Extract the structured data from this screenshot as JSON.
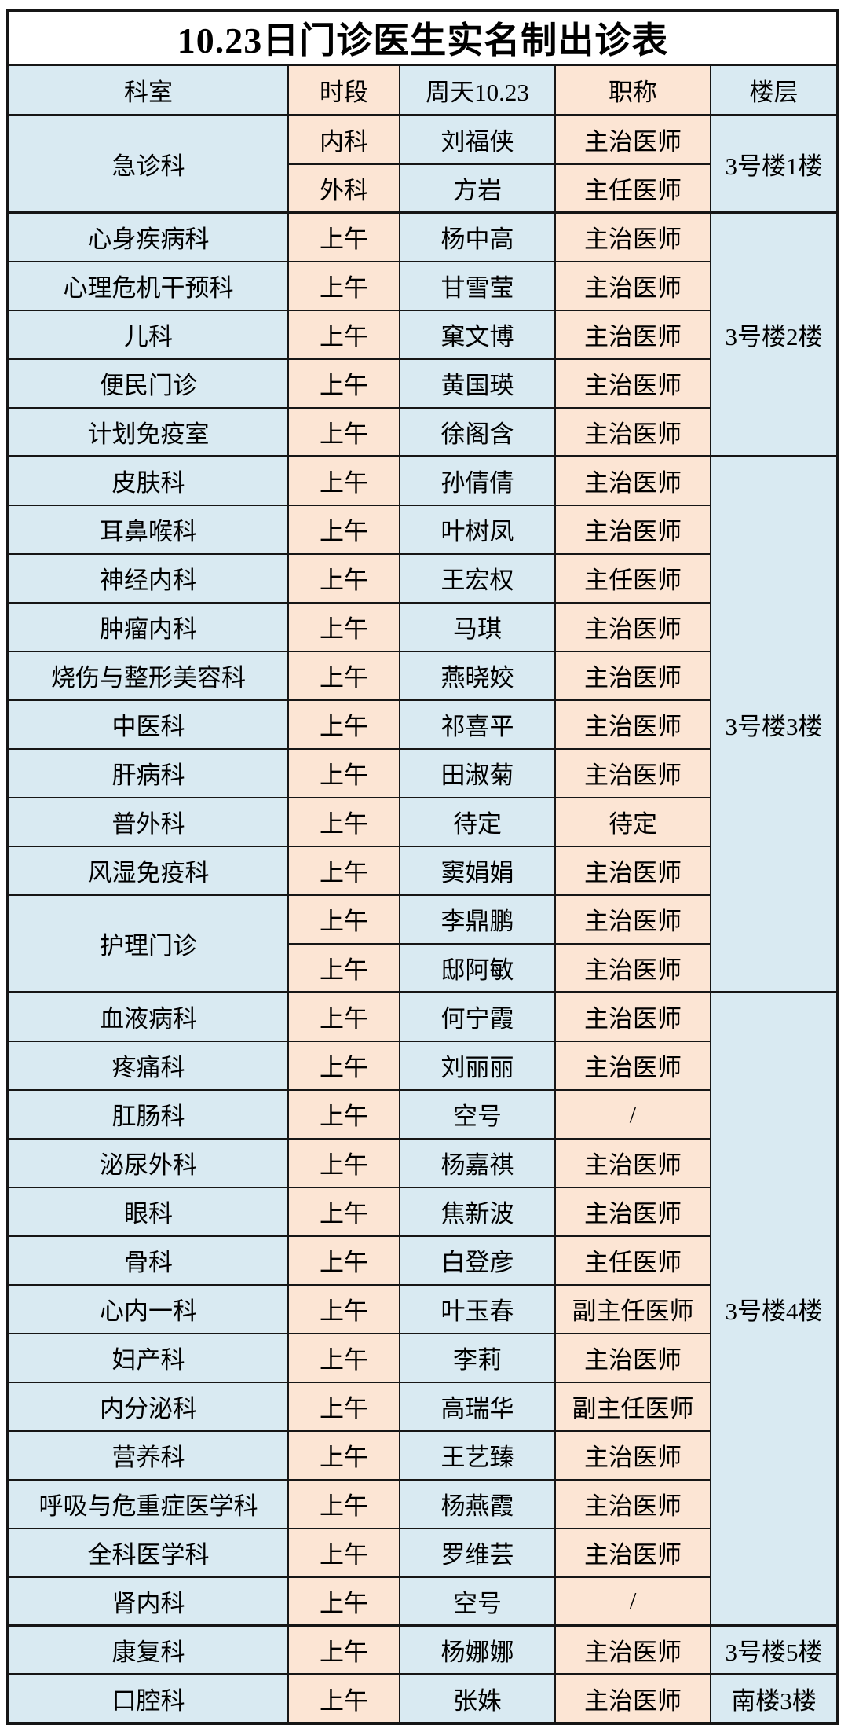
{
  "page_title": "10.23日门诊医生实名制出诊表",
  "colors": {
    "column_blue": "#d9eaf2",
    "column_peach": "#fce5d4",
    "border": "#161616",
    "background": "#ffffff",
    "text": "#000000"
  },
  "table": {
    "columns": [
      "科室",
      "时段",
      "周天10.23",
      "职称",
      "楼层"
    ],
    "rows": [
      {
        "department": "急诊科",
        "department_span": 2,
        "session": "内科",
        "doctor": "刘福侠",
        "doctor_title": "主治医师",
        "floor": "3号楼1楼",
        "floor_span": 2
      },
      {
        "department": null,
        "session": "外科",
        "doctor": "方岩",
        "doctor_title": "主任医师",
        "floor": null
      },
      {
        "department": "心身疾病科",
        "session": "上午",
        "doctor": "杨中高",
        "doctor_title": "主治医师",
        "floor": "3号楼2楼",
        "floor_span": 5
      },
      {
        "department": "心理危机干预科",
        "session": "上午",
        "doctor": "甘雪莹",
        "doctor_title": "主治医师",
        "floor": null
      },
      {
        "department": "儿科",
        "session": "上午",
        "doctor": "窠文博",
        "doctor_title": "主治医师",
        "floor": null
      },
      {
        "department": "便民门诊",
        "session": "上午",
        "doctor": "黄国瑛",
        "doctor_title": "主治医师",
        "floor": null
      },
      {
        "department": "计划免疫室",
        "session": "上午",
        "doctor": "徐阁含",
        "doctor_title": "主治医师",
        "floor": null
      },
      {
        "department": "皮肤科",
        "session": "上午",
        "doctor": "孙倩倩",
        "doctor_title": "主治医师",
        "floor": "3号楼3楼",
        "floor_span": 11
      },
      {
        "department": "耳鼻喉科",
        "session": "上午",
        "doctor": "叶树凤",
        "doctor_title": "主治医师",
        "floor": null
      },
      {
        "department": "神经内科",
        "session": "上午",
        "doctor": "王宏权",
        "doctor_title": "主任医师",
        "floor": null
      },
      {
        "department": "肿瘤内科",
        "session": "上午",
        "doctor": "马琪",
        "doctor_title": "主治医师",
        "floor": null
      },
      {
        "department": "烧伤与整形美容科",
        "session": "上午",
        "doctor": "燕晓姣",
        "doctor_title": "主治医师",
        "floor": null
      },
      {
        "department": "中医科",
        "session": "上午",
        "doctor": "祁喜平",
        "doctor_title": "主治医师",
        "floor": null
      },
      {
        "department": "肝病科",
        "session": "上午",
        "doctor": "田淑菊",
        "doctor_title": "主治医师",
        "floor": null
      },
      {
        "department": "普外科",
        "session": "上午",
        "doctor": "待定",
        "doctor_title": "待定",
        "floor": null
      },
      {
        "department": "风湿免疫科",
        "session": "上午",
        "doctor": "窦娟娟",
        "doctor_title": "主治医师",
        "floor": null
      },
      {
        "department": "护理门诊",
        "department_span": 2,
        "session": "上午",
        "doctor": "李鼎鹏",
        "doctor_title": "主治医师",
        "floor": null
      },
      {
        "department": null,
        "session": "上午",
        "doctor": "邸阿敏",
        "doctor_title": "主治医师",
        "floor": null
      },
      {
        "department": "血液病科",
        "session": "上午",
        "doctor": "何宁霞",
        "doctor_title": "主治医师",
        "floor": "3号楼4楼",
        "floor_span": 13
      },
      {
        "department": "疼痛科",
        "session": "上午",
        "doctor": "刘丽丽",
        "doctor_title": "主治医师",
        "floor": null
      },
      {
        "department": "肛肠科",
        "session": "上午",
        "doctor": "空号",
        "doctor_title": "/",
        "floor": null
      },
      {
        "department": "泌尿外科",
        "session": "上午",
        "doctor": "杨嘉祺",
        "doctor_title": "主治医师",
        "floor": null
      },
      {
        "department": "眼科",
        "session": "上午",
        "doctor": "焦新波",
        "doctor_title": "主治医师",
        "floor": null
      },
      {
        "department": "骨科",
        "session": "上午",
        "doctor": "白登彦",
        "doctor_title": "主任医师",
        "floor": null
      },
      {
        "department": "心内一科",
        "session": "上午",
        "doctor": "叶玉春",
        "doctor_title": "副主任医师",
        "floor": null
      },
      {
        "department": "妇产科",
        "session": "上午",
        "doctor": "李莉",
        "doctor_title": "主治医师",
        "floor": null
      },
      {
        "department": "内分泌科",
        "session": "上午",
        "doctor": "高瑞华",
        "doctor_title": "副主任医师",
        "floor": null
      },
      {
        "department": "营养科",
        "session": "上午",
        "doctor": "王艺臻",
        "doctor_title": "主治医师",
        "floor": null
      },
      {
        "department": "呼吸与危重症医学科",
        "session": "上午",
        "doctor": "杨燕霞",
        "doctor_title": "主治医师",
        "floor": null
      },
      {
        "department": "全科医学科",
        "session": "上午",
        "doctor": "罗维芸",
        "doctor_title": "主治医师",
        "floor": null
      },
      {
        "department": "肾内科",
        "session": "上午",
        "doctor": "空号",
        "doctor_title": "/",
        "floor": null
      },
      {
        "department": "康复科",
        "session": "上午",
        "doctor": "杨娜娜",
        "doctor_title": "主治医师",
        "floor": "3号楼5楼",
        "floor_span": 1
      },
      {
        "department": "口腔科",
        "session": "上午",
        "doctor": "张姝",
        "doctor_title": "主治医师",
        "floor": "南楼3楼",
        "floor_span": 1
      }
    ]
  }
}
